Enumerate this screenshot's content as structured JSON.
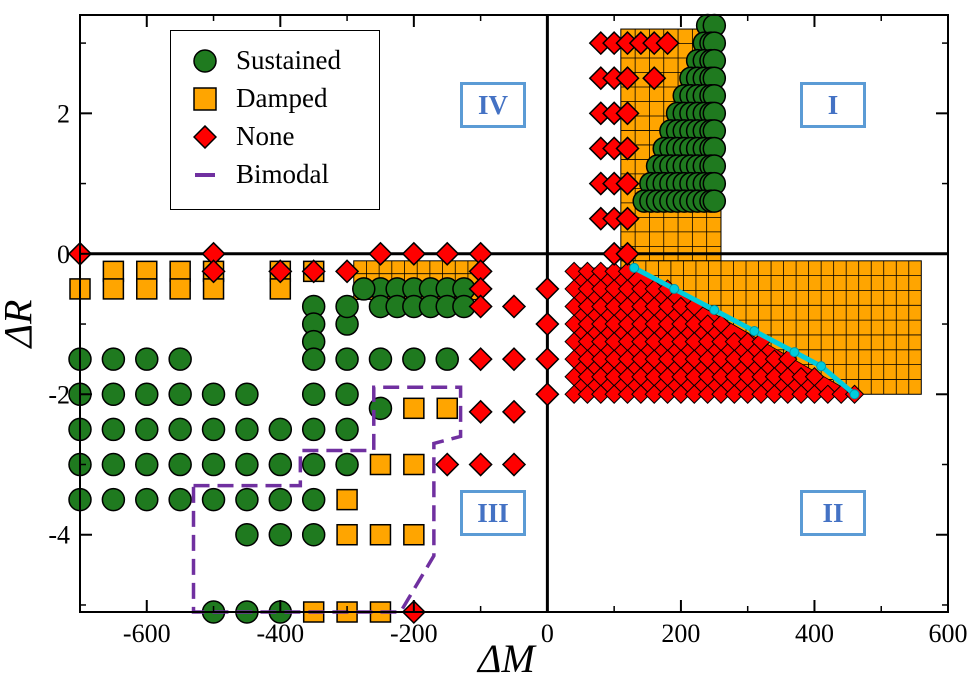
{
  "chart_data": {
    "type": "scatter",
    "xlabel": "ΔM",
    "ylabel": "ΔR",
    "xlim": [
      -700,
      600
    ],
    "ylim": [
      -5.1,
      3.4
    ],
    "xticks": [
      -600,
      -400,
      -200,
      0,
      200,
      400,
      600
    ],
    "yticks": [
      -4,
      -2,
      0,
      2
    ],
    "xtick_labels": [
      "-600",
      "-400",
      "-200",
      "0",
      "200",
      "400",
      "600"
    ],
    "ytick_labels": [
      "-4",
      "-2",
      "0",
      "2"
    ],
    "legend": {
      "position": "top-left",
      "entries": [
        {
          "label": "Sustained",
          "marker": "circle",
          "color": "#1f7a1f"
        },
        {
          "label": "Damped",
          "marker": "square",
          "color": "#ffa500"
        },
        {
          "label": "None",
          "marker": "diamond",
          "color": "#ff0000"
        },
        {
          "label": "Bimodal",
          "marker": "dashed-line",
          "color": "#7030a0"
        }
      ]
    },
    "regions": [
      {
        "label": "I",
        "x": 400,
        "y": 2.2
      },
      {
        "label": "II",
        "x": 400,
        "y": -3.7
      },
      {
        "label": "III",
        "x": -80,
        "y": -3.7
      },
      {
        "label": "IV",
        "x": -80,
        "y": 2.2
      }
    ],
    "damped_region_q1": {
      "upper_block": {
        "x": [
          110,
          260
        ],
        "y": [
          -0.1,
          3.2
        ]
      },
      "right_block": {
        "x": [
          110,
          560
        ],
        "y": [
          -2.0,
          -0.1
        ]
      }
    },
    "damped_region_q3": {
      "x": [
        -290,
        -100
      ],
      "y": [
        -0.65,
        -0.1
      ]
    },
    "series": [
      {
        "name": "Sustained",
        "color": "#1f7a1f",
        "points": [
          [
            -700,
            -1.5
          ],
          [
            -650,
            -1.5
          ],
          [
            -600,
            -1.5
          ],
          [
            -550,
            -1.5
          ],
          [
            -700,
            -2.0
          ],
          [
            -650,
            -2.0
          ],
          [
            -600,
            -2.0
          ],
          [
            -550,
            -2.0
          ],
          [
            -500,
            -2.0
          ],
          [
            -450,
            -2.0
          ],
          [
            -350,
            -2.0
          ],
          [
            -300,
            -2.0
          ],
          [
            -700,
            -2.5
          ],
          [
            -650,
            -2.5
          ],
          [
            -600,
            -2.5
          ],
          [
            -550,
            -2.5
          ],
          [
            -500,
            -2.5
          ],
          [
            -450,
            -2.5
          ],
          [
            -400,
            -2.5
          ],
          [
            -350,
            -2.5
          ],
          [
            -300,
            -2.5
          ],
          [
            -700,
            -3.0
          ],
          [
            -650,
            -3.0
          ],
          [
            -600,
            -3.0
          ],
          [
            -550,
            -3.0
          ],
          [
            -500,
            -3.0
          ],
          [
            -450,
            -3.0
          ],
          [
            -400,
            -3.0
          ],
          [
            -350,
            -3.0
          ],
          [
            -300,
            -3.0
          ],
          [
            -700,
            -3.5
          ],
          [
            -650,
            -3.5
          ],
          [
            -600,
            -3.5
          ],
          [
            -550,
            -3.5
          ],
          [
            -500,
            -3.5
          ],
          [
            -450,
            -3.5
          ],
          [
            -400,
            -3.5
          ],
          [
            -350,
            -3.5
          ],
          [
            -450,
            -4.0
          ],
          [
            -400,
            -4.0
          ],
          [
            -350,
            -4.0
          ],
          [
            -500,
            -5.1
          ],
          [
            -450,
            -5.1
          ],
          [
            -400,
            -5.1
          ],
          [
            -350,
            -0.75
          ],
          [
            -350,
            -1.0
          ],
          [
            -350,
            -1.25
          ],
          [
            -350,
            -1.5
          ],
          [
            -300,
            -1.0
          ],
          [
            -300,
            -1.5
          ],
          [
            -250,
            -1.5
          ],
          [
            -200,
            -1.5
          ],
          [
            -150,
            -1.5
          ],
          [
            -250,
            -2.2
          ],
          [
            -250,
            -0.5
          ],
          [
            -225,
            -0.5
          ],
          [
            -200,
            -0.5
          ],
          [
            -175,
            -0.5
          ],
          [
            -150,
            -0.5
          ],
          [
            -125,
            -0.5
          ],
          [
            -250,
            -0.75
          ],
          [
            -225,
            -0.75
          ],
          [
            -200,
            -0.75
          ],
          [
            -175,
            -0.75
          ],
          [
            -150,
            -0.75
          ],
          [
            -125,
            -0.75
          ],
          [
            -300,
            -0.75
          ],
          [
            -275,
            -0.5
          ],
          [
            240,
            3.25
          ],
          [
            250,
            3.25
          ],
          [
            235,
            3.0
          ],
          [
            245,
            3.0
          ],
          [
            250,
            3.0
          ],
          [
            225,
            2.75
          ],
          [
            235,
            2.75
          ],
          [
            245,
            2.75
          ],
          [
            250,
            2.75
          ],
          [
            215,
            2.5
          ],
          [
            225,
            2.5
          ],
          [
            235,
            2.5
          ],
          [
            245,
            2.5
          ],
          [
            250,
            2.5
          ],
          [
            205,
            2.25
          ],
          [
            215,
            2.25
          ],
          [
            225,
            2.25
          ],
          [
            235,
            2.25
          ],
          [
            245,
            2.25
          ],
          [
            250,
            2.25
          ],
          [
            195,
            2.0
          ],
          [
            205,
            2.0
          ],
          [
            215,
            2.0
          ],
          [
            225,
            2.0
          ],
          [
            235,
            2.0
          ],
          [
            245,
            2.0
          ],
          [
            250,
            2.0
          ],
          [
            185,
            1.75
          ],
          [
            195,
            1.75
          ],
          [
            205,
            1.75
          ],
          [
            215,
            1.75
          ],
          [
            225,
            1.75
          ],
          [
            235,
            1.75
          ],
          [
            245,
            1.75
          ],
          [
            250,
            1.75
          ],
          [
            175,
            1.5
          ],
          [
            185,
            1.5
          ],
          [
            195,
            1.5
          ],
          [
            205,
            1.5
          ],
          [
            215,
            1.5
          ],
          [
            225,
            1.5
          ],
          [
            235,
            1.5
          ],
          [
            245,
            1.5
          ],
          [
            250,
            1.5
          ],
          [
            165,
            1.25
          ],
          [
            175,
            1.25
          ],
          [
            185,
            1.25
          ],
          [
            195,
            1.25
          ],
          [
            205,
            1.25
          ],
          [
            215,
            1.25
          ],
          [
            225,
            1.25
          ],
          [
            235,
            1.25
          ],
          [
            245,
            1.25
          ],
          [
            250,
            1.25
          ],
          [
            155,
            1.0
          ],
          [
            165,
            1.0
          ],
          [
            175,
            1.0
          ],
          [
            185,
            1.0
          ],
          [
            195,
            1.0
          ],
          [
            205,
            1.0
          ],
          [
            215,
            1.0
          ],
          [
            225,
            1.0
          ],
          [
            235,
            1.0
          ],
          [
            245,
            1.0
          ],
          [
            250,
            1.0
          ],
          [
            145,
            0.75
          ],
          [
            155,
            0.75
          ],
          [
            165,
            0.75
          ],
          [
            175,
            0.75
          ],
          [
            185,
            0.75
          ],
          [
            195,
            0.75
          ],
          [
            205,
            0.75
          ],
          [
            215,
            0.75
          ],
          [
            225,
            0.75
          ],
          [
            235,
            0.75
          ],
          [
            245,
            0.75
          ],
          [
            250,
            0.75
          ]
        ]
      },
      {
        "name": "Damped",
        "color": "#ffa500",
        "points": [
          [
            -650,
            -0.25
          ],
          [
            -600,
            -0.25
          ],
          [
            -550,
            -0.25
          ],
          [
            -500,
            -0.25
          ],
          [
            -400,
            -0.25
          ],
          [
            -350,
            -0.25
          ],
          [
            -700,
            -0.5
          ],
          [
            -650,
            -0.5
          ],
          [
            -600,
            -0.5
          ],
          [
            -550,
            -0.5
          ],
          [
            -500,
            -0.5
          ],
          [
            -400,
            -0.5
          ],
          [
            -200,
            -2.2
          ],
          [
            -150,
            -2.2
          ],
          [
            -250,
            -3.0
          ],
          [
            -200,
            -3.0
          ],
          [
            -300,
            -3.5
          ],
          [
            -300,
            -4.0
          ],
          [
            -250,
            -4.0
          ],
          [
            -200,
            -4.0
          ],
          [
            -350,
            -5.1
          ],
          [
            -300,
            -5.1
          ],
          [
            -250,
            -5.1
          ]
        ]
      },
      {
        "name": "None",
        "color": "#ff0000",
        "points": [
          [
            -700,
            0.0
          ],
          [
            -500,
            0.0
          ],
          [
            -500,
            -0.25
          ],
          [
            -400,
            -0.25
          ],
          [
            -350,
            -0.25
          ],
          [
            -300,
            -0.25
          ],
          [
            -250,
            0.0
          ],
          [
            -200,
            0.0
          ],
          [
            -150,
            0.0
          ],
          [
            -100,
            0.0
          ],
          [
            -100,
            -0.25
          ],
          [
            -100,
            -0.5
          ],
          [
            -100,
            -0.75
          ],
          [
            -50,
            -0.75
          ],
          [
            -100,
            -1.5
          ],
          [
            -50,
            -1.5
          ],
          [
            0,
            -0.5
          ],
          [
            0,
            -1.0
          ],
          [
            0,
            -1.5
          ],
          [
            0,
            -2.0
          ],
          [
            -100,
            -2.25
          ],
          [
            -50,
            -2.25
          ],
          [
            -150,
            -3.0
          ],
          [
            -100,
            -3.0
          ],
          [
            -50,
            -3.0
          ],
          [
            -200,
            -5.1
          ],
          [
            80,
            3.0
          ],
          [
            100,
            3.0
          ],
          [
            120,
            3.0
          ],
          [
            140,
            3.0
          ],
          [
            160,
            3.0
          ],
          [
            180,
            3.0
          ],
          [
            80,
            2.5
          ],
          [
            100,
            2.5
          ],
          [
            120,
            2.5
          ],
          [
            160,
            2.5
          ],
          [
            80,
            2.0
          ],
          [
            100,
            2.0
          ],
          [
            120,
            2.0
          ],
          [
            80,
            1.5
          ],
          [
            100,
            1.5
          ],
          [
            120,
            1.5
          ],
          [
            80,
            1.0
          ],
          [
            100,
            1.0
          ],
          [
            120,
            1.0
          ],
          [
            80,
            0.5
          ],
          [
            100,
            0.5
          ],
          [
            120,
            0.5
          ],
          [
            100,
            0.0
          ],
          [
            120,
            0.0
          ]
        ]
      }
    ],
    "none_triangle_q1": {
      "vertices": [
        [
          40,
          -0.2
        ],
        [
          130,
          -0.2
        ],
        [
          460,
          -2.0
        ],
        [
          40,
          -2.0
        ]
      ]
    },
    "bimodal_boundary": [
      [
        -530,
        -3.3
      ],
      [
        -370,
        -3.3
      ],
      [
        -370,
        -2.8
      ],
      [
        -260,
        -2.8
      ],
      [
        -260,
        -1.9
      ],
      [
        -130,
        -1.9
      ],
      [
        -130,
        -2.6
      ],
      [
        -170,
        -2.7
      ],
      [
        -170,
        -4.3
      ],
      [
        -220,
        -5.1
      ],
      [
        -530,
        -5.1
      ],
      [
        -530,
        -3.3
      ]
    ],
    "cyan_line": {
      "color": "#00ccdd",
      "points": [
        [
          130,
          -0.2
        ],
        [
          190,
          -0.5
        ],
        [
          250,
          -0.8
        ],
        [
          310,
          -1.1
        ],
        [
          370,
          -1.4
        ],
        [
          410,
          -1.6
        ],
        [
          460,
          -2.0
        ]
      ]
    }
  }
}
